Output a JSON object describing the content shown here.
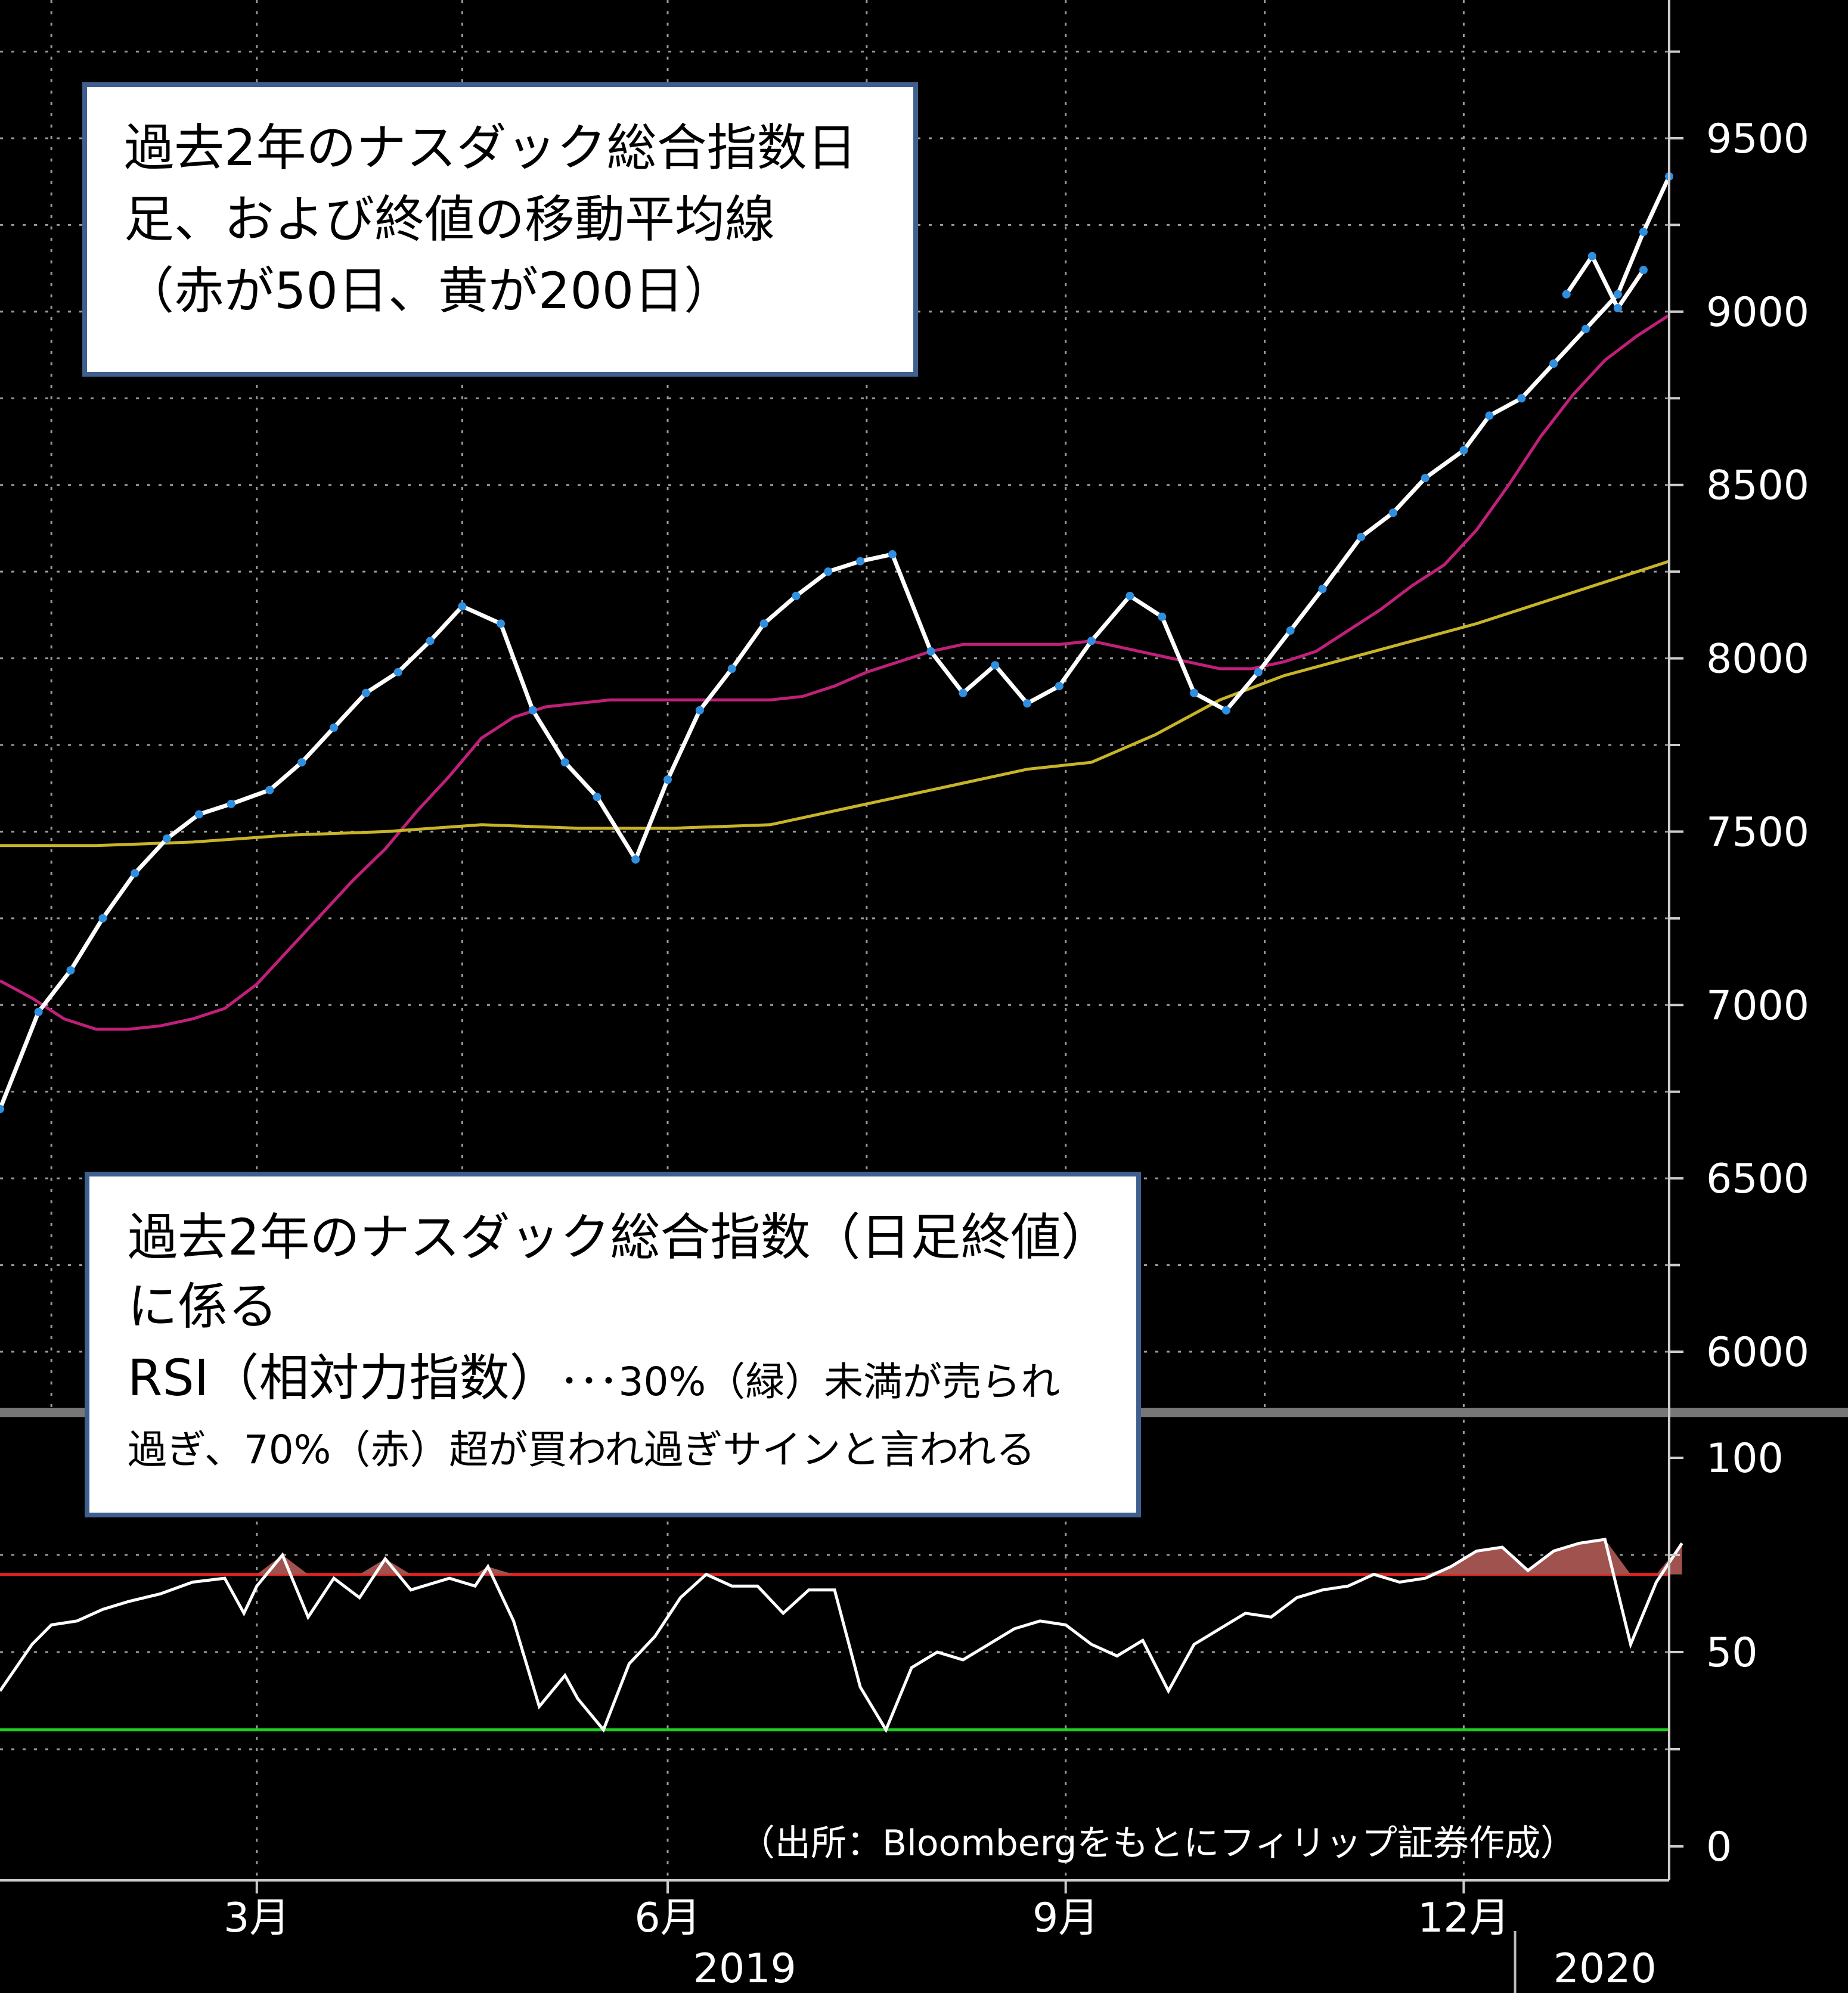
{
  "chart_data": [
    {
      "type": "line",
      "panel": "price",
      "y_axis_ticks": [
        "9500",
        "9000",
        "8500",
        "8000",
        "7500",
        "7000",
        "6500",
        "6000"
      ],
      "ylim": [
        5850,
        9900
      ],
      "x_ticks": [
        "3月",
        "6月",
        "9月",
        "12月"
      ],
      "x_year_labels": [
        "2019",
        "2020"
      ],
      "x_range_index": [
        0,
        260
      ],
      "series": [
        {
          "color": "#ffffff",
          "x_index": [
            0,
            6,
            11,
            16,
            21,
            26,
            31,
            36,
            42,
            47,
            52,
            57,
            62,
            67,
            72,
            78,
            83,
            88,
            93,
            99,
            104,
            109,
            114,
            119,
            124,
            129,
            134,
            139,
            145,
            150,
            155,
            160,
            165,
            170,
            176,
            181,
            186,
            191,
            196,
            201,
            206,
            212,
            217,
            222,
            228,
            232,
            237
          ],
          "values": [
            6700,
            6980,
            7100,
            7250,
            7380,
            7480,
            7550,
            7580,
            7620,
            7700,
            7800,
            7900,
            7960,
            8050,
            8150,
            8100,
            7850,
            7700,
            7600,
            7420,
            7650,
            7850,
            7970,
            8100,
            8180,
            8250,
            8280,
            8300,
            8020,
            7900,
            7980,
            7870,
            7920,
            8050,
            8180,
            8120,
            7900,
            7850,
            7960,
            8080,
            8200,
            8350,
            8420,
            8520,
            8600,
            8700,
            8750
          ]
        },
        {
          "color": "#ffffff",
          "x_index": [
            237,
            242,
            247,
            252,
            256,
            260
          ],
          "values": [
            8750,
            8850,
            8950,
            9050,
            9230,
            9390
          ]
        },
        {
          "color": "#ffffff",
          "x_index": [
            244,
            248,
            252,
            256
          ],
          "values": [
            9050,
            9160,
            9010,
            9120
          ]
        }
      ],
      "moving_averages": [
        {
          "color": "#c0207a",
          "x_index": [
            0,
            5,
            10,
            15,
            20,
            25,
            30,
            35,
            40,
            45,
            50,
            55,
            60,
            65,
            70,
            75,
            80,
            85,
            90,
            95,
            100,
            105,
            110,
            115,
            120,
            125,
            130,
            135,
            140,
            145,
            150,
            155,
            160,
            165,
            170,
            175,
            180,
            185,
            190,
            195,
            200,
            205,
            210,
            215,
            220,
            225,
            230,
            235,
            240,
            245,
            250,
            255,
            260
          ],
          "values": [
            7070,
            7020,
            6960,
            6930,
            6930,
            6940,
            6960,
            6990,
            7060,
            7160,
            7260,
            7360,
            7450,
            7560,
            7660,
            7770,
            7830,
            7860,
            7870,
            7880,
            7880,
            7880,
            7880,
            7880,
            7880,
            7890,
            7920,
            7960,
            7990,
            8020,
            8040,
            8040,
            8040,
            8040,
            8050,
            8030,
            8010,
            7990,
            7970,
            7970,
            7990,
            8020,
            8080,
            8140,
            8210,
            8270,
            8370,
            8500,
            8640,
            8760,
            8860,
            8930,
            8990
          ]
        },
        {
          "color": "#c8b428",
          "x_index": [
            0,
            15,
            30,
            45,
            60,
            75,
            90,
            105,
            120,
            130,
            140,
            150,
            160,
            170,
            180,
            190,
            200,
            210,
            220,
            230,
            240,
            250,
            260
          ],
          "values": [
            7460,
            7460,
            7470,
            7490,
            7500,
            7520,
            7510,
            7510,
            7520,
            7560,
            7600,
            7640,
            7680,
            7700,
            7780,
            7880,
            7950,
            8000,
            8050,
            8100,
            8160,
            8220,
            8280
          ]
        }
      ]
    },
    {
      "type": "line",
      "panel": "RSI",
      "y_axis_ticks": [
        "100",
        "50",
        "0"
      ],
      "ylim": [
        0,
        100
      ],
      "reference_lines": [
        {
          "value": 70,
          "color": "#e02020"
        },
        {
          "value": 30,
          "color": "#20d020"
        }
      ],
      "series": [
        {
          "color": "#ffffff",
          "x_index": [
            0,
            5,
            8,
            12,
            16,
            20,
            25,
            30,
            35,
            38,
            40,
            44,
            48,
            52,
            56,
            60,
            64,
            70,
            74,
            76,
            80,
            84,
            88,
            90,
            94,
            98,
            102,
            106,
            110,
            114,
            118,
            122,
            126,
            130,
            134,
            138,
            142,
            146,
            150,
            154,
            158,
            162,
            166,
            170,
            174,
            178,
            182,
            186,
            190,
            194,
            198,
            202,
            206,
            210,
            214,
            218,
            222,
            226,
            230,
            234,
            238,
            242,
            246,
            250,
            254,
            258,
            262
          ],
          "values": [
            40,
            52,
            57,
            58,
            61,
            63,
            65,
            68,
            69,
            60,
            67,
            75,
            59,
            69,
            64,
            74,
            66,
            69,
            67,
            72,
            58,
            36,
            44,
            38,
            30,
            47,
            54,
            64,
            70,
            67,
            67,
            60,
            66,
            66,
            41,
            30,
            46,
            50,
            48,
            52,
            56,
            58,
            57,
            52,
            49,
            53,
            40,
            52,
            56,
            60,
            59,
            64,
            66,
            67,
            70,
            68,
            69,
            72,
            76,
            77,
            71,
            76,
            78,
            79,
            52,
            68,
            78
          ]
        }
      ]
    }
  ],
  "annotations": {
    "box1_lines": [
      "過去2年のナスダック総合指数日",
      "足、および終値の移動平均線",
      "（赤が50日、黄が200日）"
    ],
    "box2_line1": "過去2年のナスダック総合指数（日足終値）",
    "box2_line2": "に係る",
    "box2_line3_big": "RSI（相対力指数）",
    "box2_line3_small": "･･･30%（緑）未満が売られ",
    "box2_line4": "過ぎ、70%（赤）超が買われ過ぎサインと言われる",
    "source": "（出所：Bloombergをもとにフィリップ証券作成）"
  }
}
